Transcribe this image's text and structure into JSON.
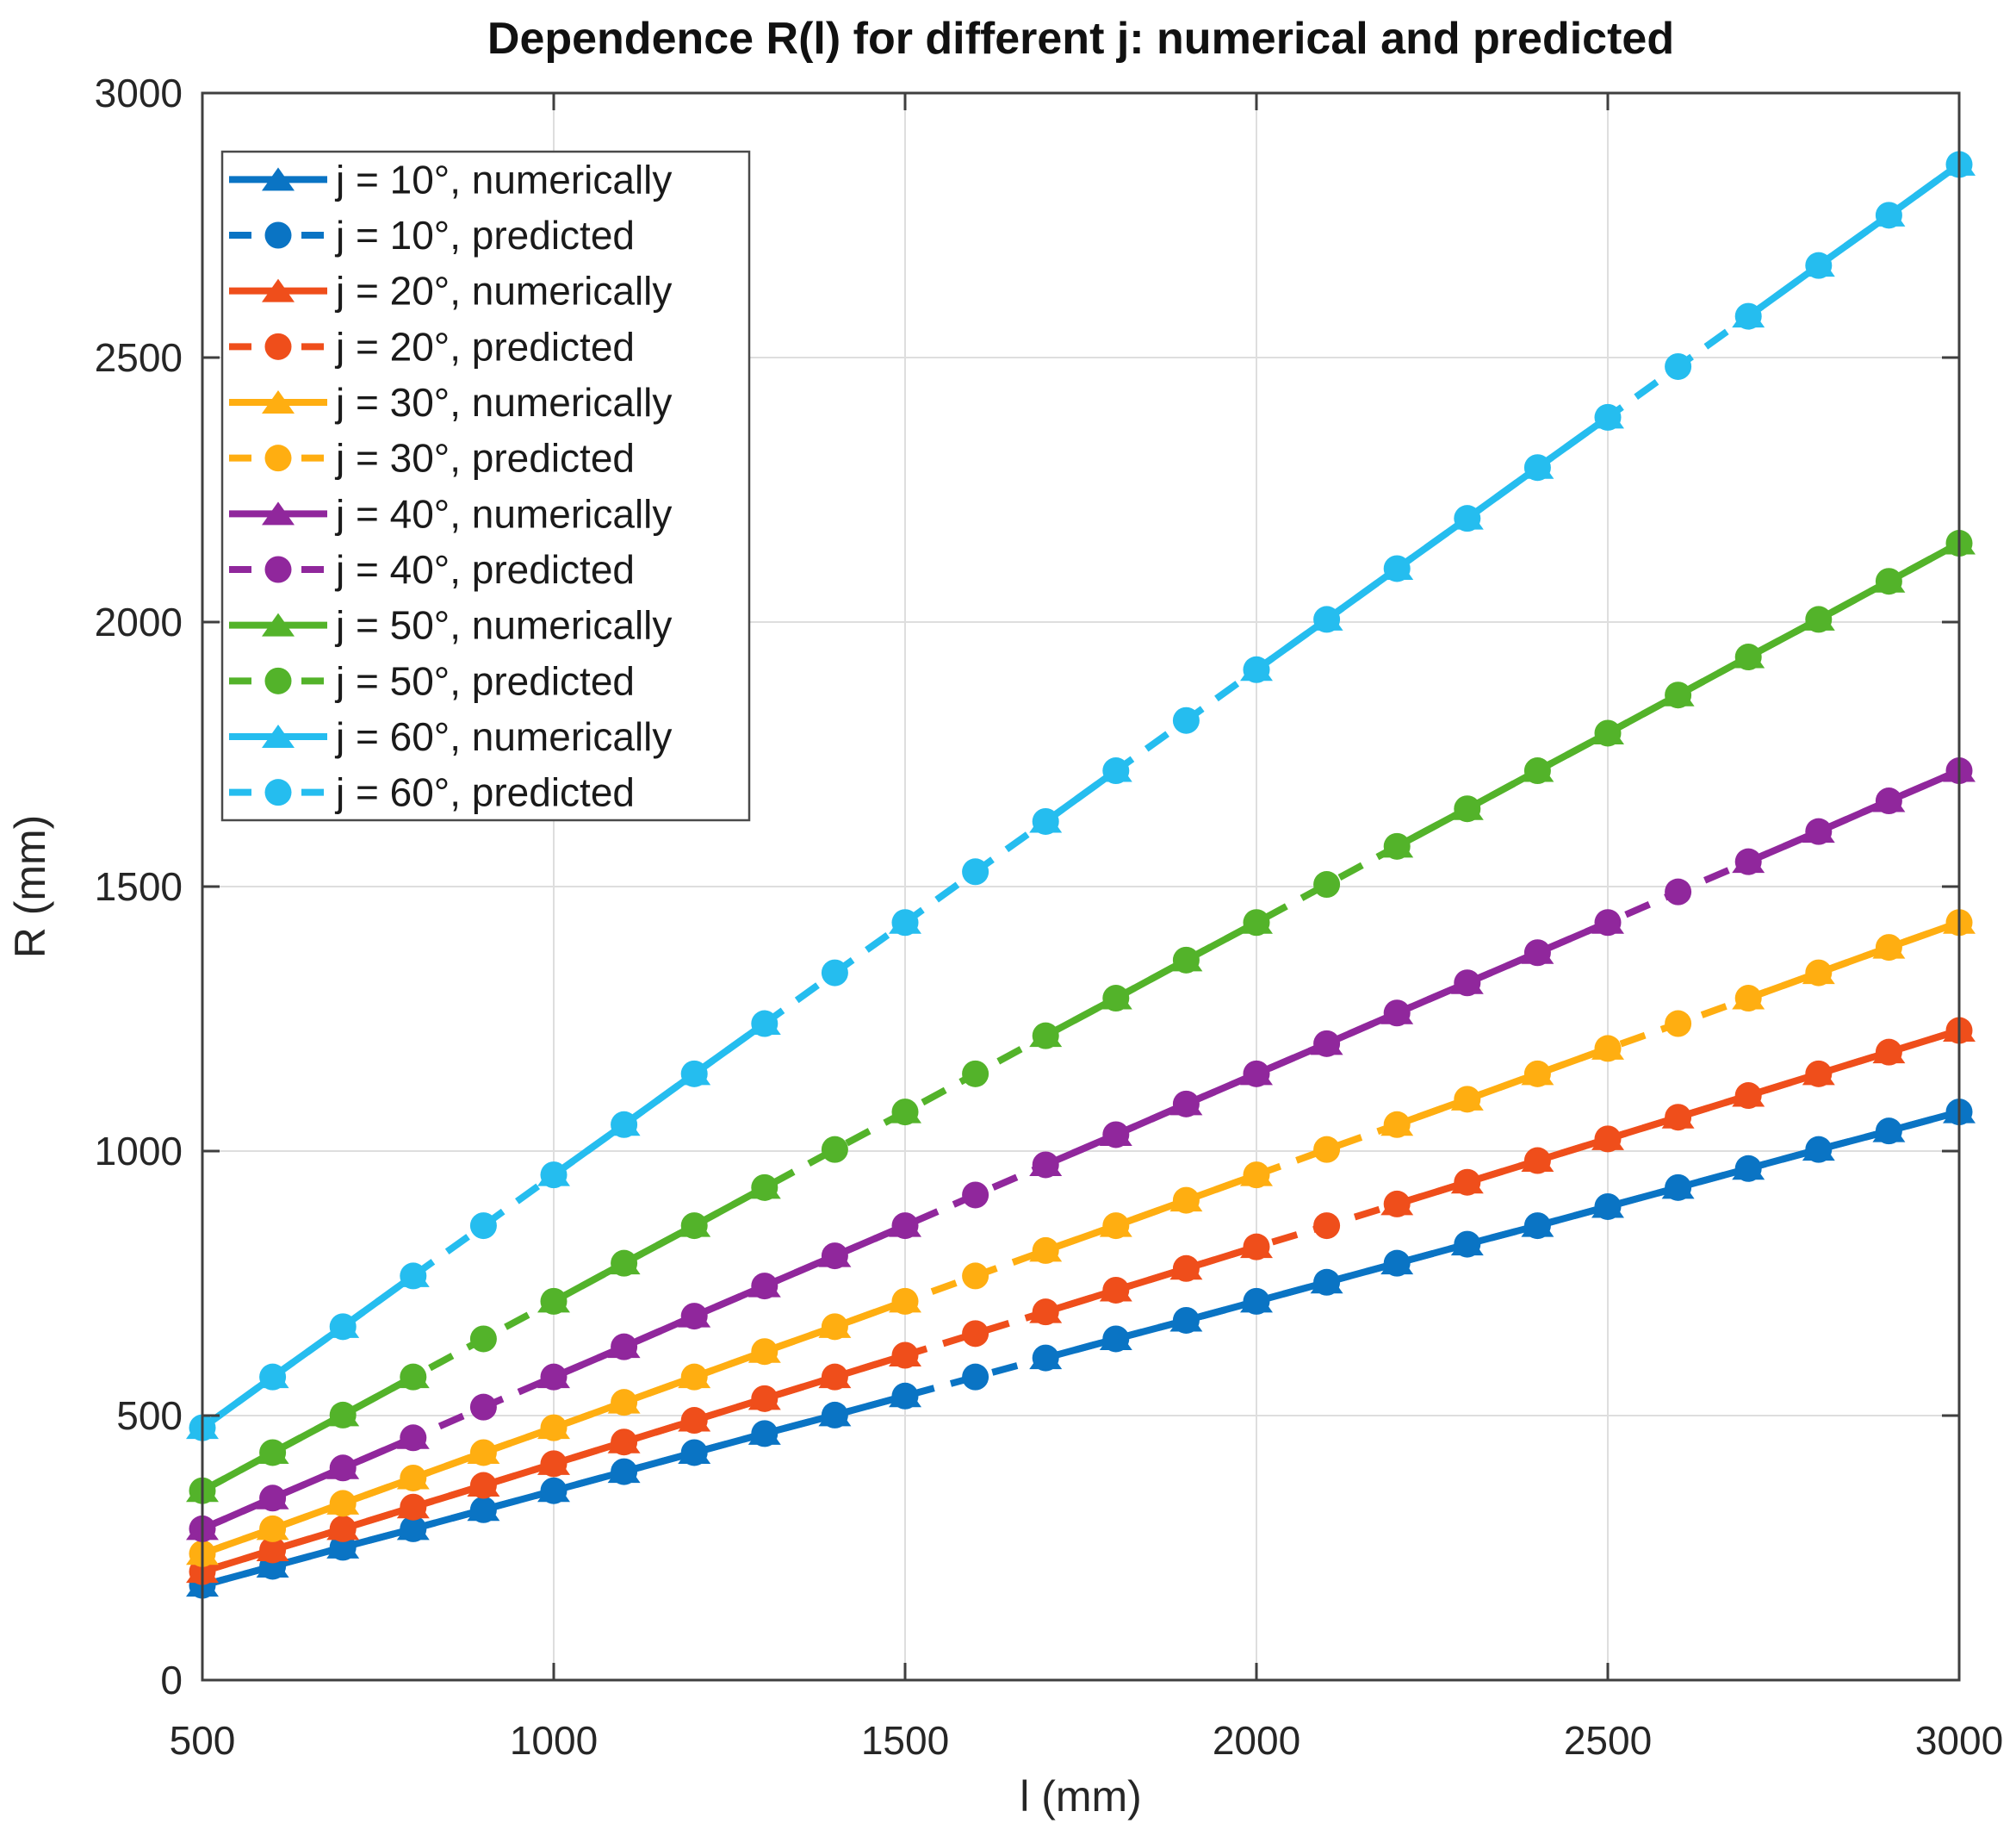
{
  "figure": {
    "background": "#FFFFFF"
  },
  "chart_data": {
    "type": "line",
    "title": "Dependence R(l) for different j: numerical and predicted",
    "xlabel": "l (mm)",
    "ylabel": "R (mm)",
    "x_range": [
      500,
      3000
    ],
    "y_range": [
      0,
      3000
    ],
    "x_ticks": [
      500,
      1000,
      1500,
      2000,
      2500,
      3000
    ],
    "y_ticks": [
      0,
      500,
      1000,
      1500,
      2000,
      2500,
      3000
    ],
    "grid": true,
    "legend_position": "top-left",
    "x": [
      500,
      600,
      700,
      800,
      900,
      1000,
      1100,
      1200,
      1300,
      1400,
      1500,
      1600,
      1700,
      1800,
      1900,
      2000,
      2100,
      2200,
      2300,
      2400,
      2500,
      2600,
      2700,
      2800,
      2900,
      3000
    ],
    "series": [
      {
        "j": 10,
        "color": "#0A74C4",
        "numerical_label": "j = 10°, numerically",
        "predicted_label": "j = 10°, predicted",
        "numerical": [
          179,
          215,
          251,
          286,
          322,
          358,
          394,
          430,
          466,
          501,
          537,
          null,
          609,
          645,
          680,
          716,
          752,
          788,
          824,
          859,
          895,
          931,
          967,
          1003,
          1038,
          1074
        ],
        "predicted": [
          179,
          215,
          251,
          286,
          322,
          358,
          394,
          430,
          466,
          501,
          537,
          573,
          609,
          645,
          680,
          716,
          752,
          788,
          824,
          859,
          895,
          931,
          967,
          1003,
          1038,
          1074
        ]
      },
      {
        "j": 20,
        "color": "#EF4E1B",
        "numerical_label": "j = 20°, numerically",
        "predicted_label": "j = 20°, predicted",
        "numerical": [
          205,
          246,
          286,
          327,
          368,
          409,
          450,
          491,
          532,
          573,
          614,
          null,
          696,
          737,
          778,
          819,
          null,
          900,
          941,
          982,
          1023,
          1064,
          1105,
          1146,
          1187,
          1228
        ],
        "predicted": [
          205,
          246,
          286,
          327,
          368,
          409,
          450,
          491,
          532,
          573,
          614,
          655,
          696,
          737,
          778,
          819,
          859,
          900,
          941,
          982,
          1023,
          1064,
          1105,
          1146,
          1187,
          1228
        ]
      },
      {
        "j": 30,
        "color": "#FFAE11",
        "numerical_label": "j = 30°, numerically",
        "predicted_label": "j = 30°, predicted",
        "numerical": [
          239,
          286,
          334,
          382,
          430,
          477,
          525,
          573,
          621,
          668,
          716,
          null,
          812,
          859,
          907,
          955,
          null,
          1050,
          1098,
          1146,
          1194,
          null,
          1289,
          1337,
          1385,
          1432
        ],
        "predicted": [
          239,
          286,
          334,
          382,
          430,
          477,
          525,
          573,
          621,
          668,
          716,
          764,
          812,
          859,
          907,
          955,
          1003,
          1050,
          1098,
          1146,
          1194,
          1241,
          1289,
          1337,
          1385,
          1432
        ]
      },
      {
        "j": 40,
        "color": "#90279C",
        "numerical_label": "j = 40°, numerically",
        "predicted_label": "j = 40°, predicted",
        "numerical": [
          286,
          344,
          401,
          458,
          null,
          573,
          630,
          688,
          745,
          802,
          859,
          null,
          974,
          1031,
          1089,
          1146,
          1203,
          1261,
          1318,
          1375,
          1432,
          null,
          1547,
          1604,
          1662,
          1719
        ],
        "predicted": [
          286,
          344,
          401,
          458,
          516,
          573,
          630,
          688,
          745,
          802,
          859,
          917,
          974,
          1031,
          1089,
          1146,
          1203,
          1261,
          1318,
          1375,
          1432,
          1490,
          1547,
          1604,
          1662,
          1719
        ]
      },
      {
        "j": 50,
        "color": "#53B32A",
        "numerical_label": "j = 50°, numerically",
        "predicted_label": "j = 50°, predicted",
        "numerical": [
          358,
          430,
          501,
          573,
          null,
          716,
          788,
          859,
          931,
          null,
          1074,
          null,
          1218,
          1289,
          1361,
          1432,
          null,
          1576,
          1647,
          1719,
          1790,
          1862,
          1934,
          2005,
          2077,
          2149
        ],
        "predicted": [
          358,
          430,
          501,
          573,
          645,
          716,
          788,
          859,
          931,
          1003,
          1074,
          1146,
          1218,
          1289,
          1361,
          1432,
          1504,
          1576,
          1647,
          1719,
          1790,
          1862,
          1934,
          2005,
          2077,
          2149
        ]
      },
      {
        "j": 60,
        "color": "#25BDEF",
        "numerical_label": "j = 60°, numerically",
        "predicted_label": "j = 60°, predicted",
        "numerical": [
          477,
          573,
          668,
          764,
          null,
          955,
          1050,
          1146,
          1241,
          null,
          1432,
          null,
          1623,
          1719,
          null,
          1910,
          2005,
          2101,
          2196,
          2292,
          2387,
          null,
          2578,
          2674,
          2769,
          2865
        ],
        "predicted": [
          477,
          573,
          668,
          764,
          859,
          955,
          1050,
          1146,
          1241,
          1337,
          1432,
          1528,
          1623,
          1719,
          1814,
          1910,
          2005,
          2101,
          2196,
          2292,
          2387,
          2483,
          2578,
          2674,
          2769,
          2865
        ]
      }
    ],
    "style": {
      "grid_color": "#DEDEDE",
      "axis_color": "#3F3F3F",
      "tick_label_color": "#262626",
      "title_color": "#111111",
      "legend_border_color": "#4A4A4A",
      "legend_background": "#FFFFFF"
    }
  }
}
